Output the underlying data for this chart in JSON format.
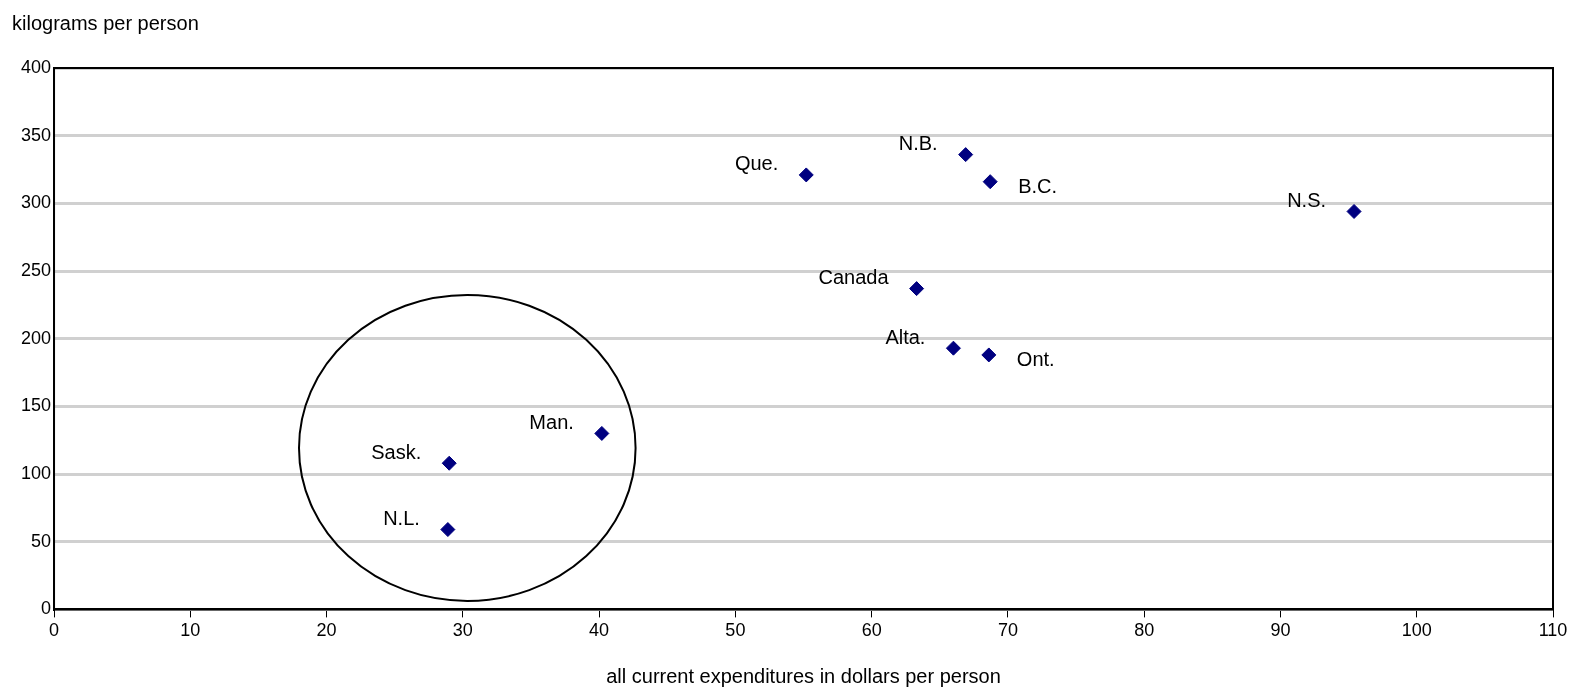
{
  "chart_data": {
    "type": "scatter",
    "xlabel": "all current expenditures in dollars per person",
    "ylabel": "kilograms per person",
    "x": [
      55.2,
      66.9,
      68.7,
      95.4,
      63.3,
      66.0,
      68.6,
      40.2,
      29.0,
      28.9
    ],
    "values": [
      321,
      336,
      316,
      294,
      237,
      193,
      188,
      130,
      108,
      59
    ],
    "color": "#000080",
    "marker": "diamond",
    "grid": "y",
    "legend": false,
    "xlim": [
      0,
      110
    ],
    "xticks": [
      0,
      10,
      20,
      30,
      40,
      50,
      60,
      70,
      80,
      90,
      100,
      110
    ],
    "ylim": [
      0,
      400
    ],
    "yticks": [
      0,
      50,
      100,
      150,
      200,
      250,
      300,
      350,
      400
    ],
    "annotations": [
      {
        "text": "Que.",
        "x": 55.2,
        "y": 321
      },
      {
        "text": "N.B.",
        "x": 66.9,
        "y": 336
      },
      {
        "text": "B.C.",
        "x": 68.7,
        "y": 316
      },
      {
        "text": "N.S.",
        "x": 95.4,
        "y": 294
      },
      {
        "text": "Canada",
        "x": 63.3,
        "y": 237
      },
      {
        "text": "Alta.",
        "x": 66.0,
        "y": 193
      },
      {
        "text": "Ont.",
        "x": 68.6,
        "y": 188
      },
      {
        "text": "Man.",
        "x": 40.2,
        "y": 130
      },
      {
        "text": "Sask.",
        "x": 29.0,
        "y": 108
      },
      {
        "text": "N.L.",
        "x": 28.9,
        "y": 59
      }
    ]
  }
}
